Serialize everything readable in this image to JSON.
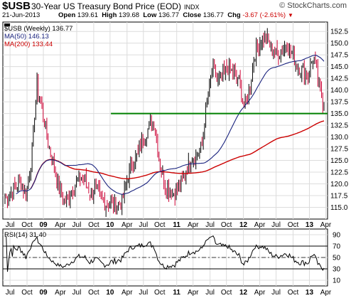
{
  "header": {
    "symbol": "$USB",
    "title": "30-Year US Treasury Bond Price (EOD)",
    "exchange": "INDX",
    "brand": "© StockCharts.com",
    "date": "21-Jun-2013",
    "open_label": "Open",
    "open": "139.61",
    "high_label": "High",
    "high": "139.68",
    "low_label": "Low",
    "low": "136.77",
    "close_label": "Close",
    "close": "136.77",
    "chg_label": "Chg",
    "chg": "-3.67 (-2.61%)"
  },
  "legend": {
    "price": "$USB (Weekly) 136.77",
    "ma50": "MA(50) 146.13",
    "ma200": "MA(200) 133.44",
    "rsi": "RSI(14) 31.40"
  },
  "colors": {
    "up_bar": "#000000",
    "down_bar": "#cc0033",
    "ma50": "#1a237e",
    "ma200": "#cc0000",
    "support_line": "#008000",
    "grid": "#dcdcdc"
  },
  "chart_data": [
    {
      "type": "candlestick",
      "title": "30-Year US Treasury Bond Price (EOD)",
      "x_range": [
        "2008-07",
        "2013-06"
      ],
      "x_tick_labels": [
        "Jul",
        "Oct",
        "09",
        "Apr",
        "Jul",
        "Oct",
        "10",
        "Apr",
        "Jul",
        "Oct",
        "11",
        "Apr",
        "Jul",
        "Oct",
        "12",
        "Apr",
        "Jul",
        "Oct",
        "13",
        "Apr"
      ],
      "y_ticks": [
        115.0,
        117.5,
        120.0,
        122.5,
        125.0,
        127.5,
        130.0,
        132.5,
        135.0,
        137.5,
        140.0,
        142.5,
        145.0,
        147.5,
        150.0,
        152.5
      ],
      "ylim": [
        112.5,
        154.5
      ],
      "grid": true,
      "price_series": {
        "name": "$USB (Weekly)",
        "dates": [
          "2008-06",
          "2008-07",
          "2008-08",
          "2008-09",
          "2008-10",
          "2008-11",
          "2008-12",
          "2009-01",
          "2009-02",
          "2009-03",
          "2009-04",
          "2009-05",
          "2009-06",
          "2009-07",
          "2009-08",
          "2009-09",
          "2009-10",
          "2009-11",
          "2009-12",
          "2010-01",
          "2010-02",
          "2010-03",
          "2010-04",
          "2010-05",
          "2010-06",
          "2010-07",
          "2010-08",
          "2010-09",
          "2010-10",
          "2010-11",
          "2010-12",
          "2011-01",
          "2011-02",
          "2011-03",
          "2011-04",
          "2011-05",
          "2011-06",
          "2011-07",
          "2011-08",
          "2011-09",
          "2011-10",
          "2011-11",
          "2011-12",
          "2012-01",
          "2012-02",
          "2012-03",
          "2012-04",
          "2012-05",
          "2012-06",
          "2012-07",
          "2012-08",
          "2012-09",
          "2012-10",
          "2012-11",
          "2012-12",
          "2013-01",
          "2013-02",
          "2013-03",
          "2013-04",
          "2013-05",
          "2013-06"
        ],
        "close": [
          117.0,
          117.8,
          119.5,
          120.5,
          117.5,
          126.0,
          141.0,
          136.0,
          129.5,
          124.5,
          120.0,
          116.0,
          117.5,
          119.5,
          121.5,
          121.0,
          118.0,
          119.0,
          117.0,
          115.5,
          116.0,
          115.5,
          116.0,
          121.0,
          125.0,
          126.0,
          130.0,
          132.0,
          133.5,
          125.0,
          120.0,
          118.5,
          118.0,
          120.0,
          122.5,
          125.5,
          126.0,
          128.0,
          137.0,
          145.0,
          142.0,
          143.0,
          145.0,
          143.5,
          142.0,
          136.0,
          140.0,
          148.0,
          150.5,
          151.5,
          149.0,
          147.5,
          148.5,
          150.0,
          147.5,
          145.5,
          144.0,
          143.0,
          147.5,
          141.0,
          136.77
        ]
      },
      "ma50": {
        "name": "MA(50)",
        "last": 146.13
      },
      "ma200": {
        "name": "MA(200)",
        "last": 133.44
      },
      "support_level": 135.0
    },
    {
      "type": "line",
      "name": "RSI(14)",
      "last": 31.4,
      "y_ticks": [
        10,
        30,
        50,
        70,
        90
      ],
      "ylim": [
        0,
        100
      ],
      "reference_lines": [
        30,
        70
      ],
      "x_tick_labels": [
        "Jul",
        "Oct",
        "09",
        "Apr",
        "Jul",
        "Oct",
        "10",
        "Apr",
        "Jul",
        "Oct",
        "11",
        "Apr",
        "Jul",
        "Oct",
        "12",
        "Apr",
        "Jul",
        "Oct",
        "13",
        "Apr"
      ]
    }
  ]
}
